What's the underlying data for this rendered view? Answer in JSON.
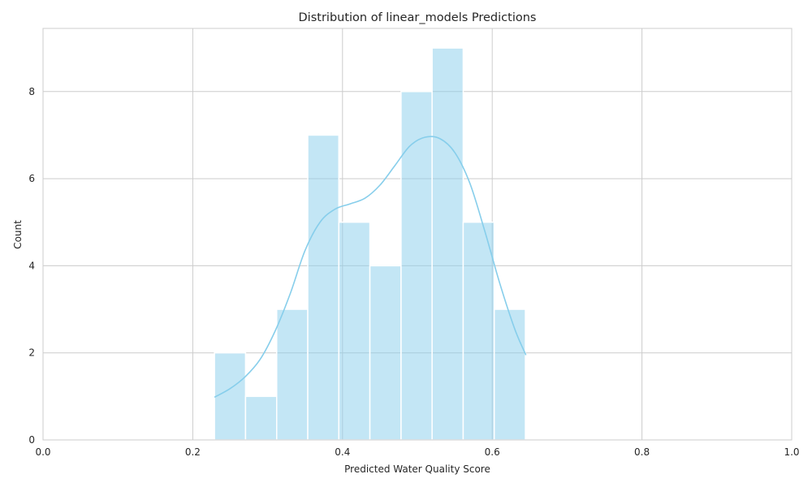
{
  "chart_data": {
    "type": "bar",
    "title": "Distribution of linear_models Predictions",
    "xlabel": "Predicted Water Quality Score",
    "ylabel": "Count",
    "xlim": [
      0.0,
      1.0
    ],
    "ylim": [
      0,
      9.45
    ],
    "grid": true,
    "xticks": [
      0.0,
      0.2,
      0.4,
      0.6,
      0.8,
      1.0
    ],
    "xtick_labels": [
      "0.0",
      "0.2",
      "0.4",
      "0.6",
      "0.8",
      "1.0"
    ],
    "yticks": [
      0,
      2,
      4,
      6,
      8
    ],
    "ytick_labels": [
      "0",
      "2",
      "4",
      "6",
      "8"
    ],
    "bin_edges": [
      0.229,
      0.2705,
      0.3121,
      0.3536,
      0.3951,
      0.4366,
      0.4782,
      0.5197,
      0.5612,
      0.6027,
      0.6443
    ],
    "values": [
      2,
      1,
      3,
      7,
      5,
      4,
      8,
      9,
      5,
      3
    ],
    "bar_color": "#87ceeb",
    "kde": {
      "x": [
        0.229,
        0.25,
        0.27,
        0.29,
        0.31,
        0.33,
        0.35,
        0.37,
        0.39,
        0.41,
        0.43,
        0.45,
        0.47,
        0.49,
        0.51,
        0.53,
        0.55,
        0.57,
        0.59,
        0.61,
        0.63,
        0.645
      ],
      "y": [
        0.98,
        1.18,
        1.45,
        1.85,
        2.5,
        3.35,
        4.35,
        5.0,
        5.3,
        5.42,
        5.55,
        5.85,
        6.3,
        6.75,
        6.95,
        6.92,
        6.6,
        5.9,
        4.8,
        3.6,
        2.55,
        1.95
      ],
      "color": "#87ceeb"
    }
  }
}
